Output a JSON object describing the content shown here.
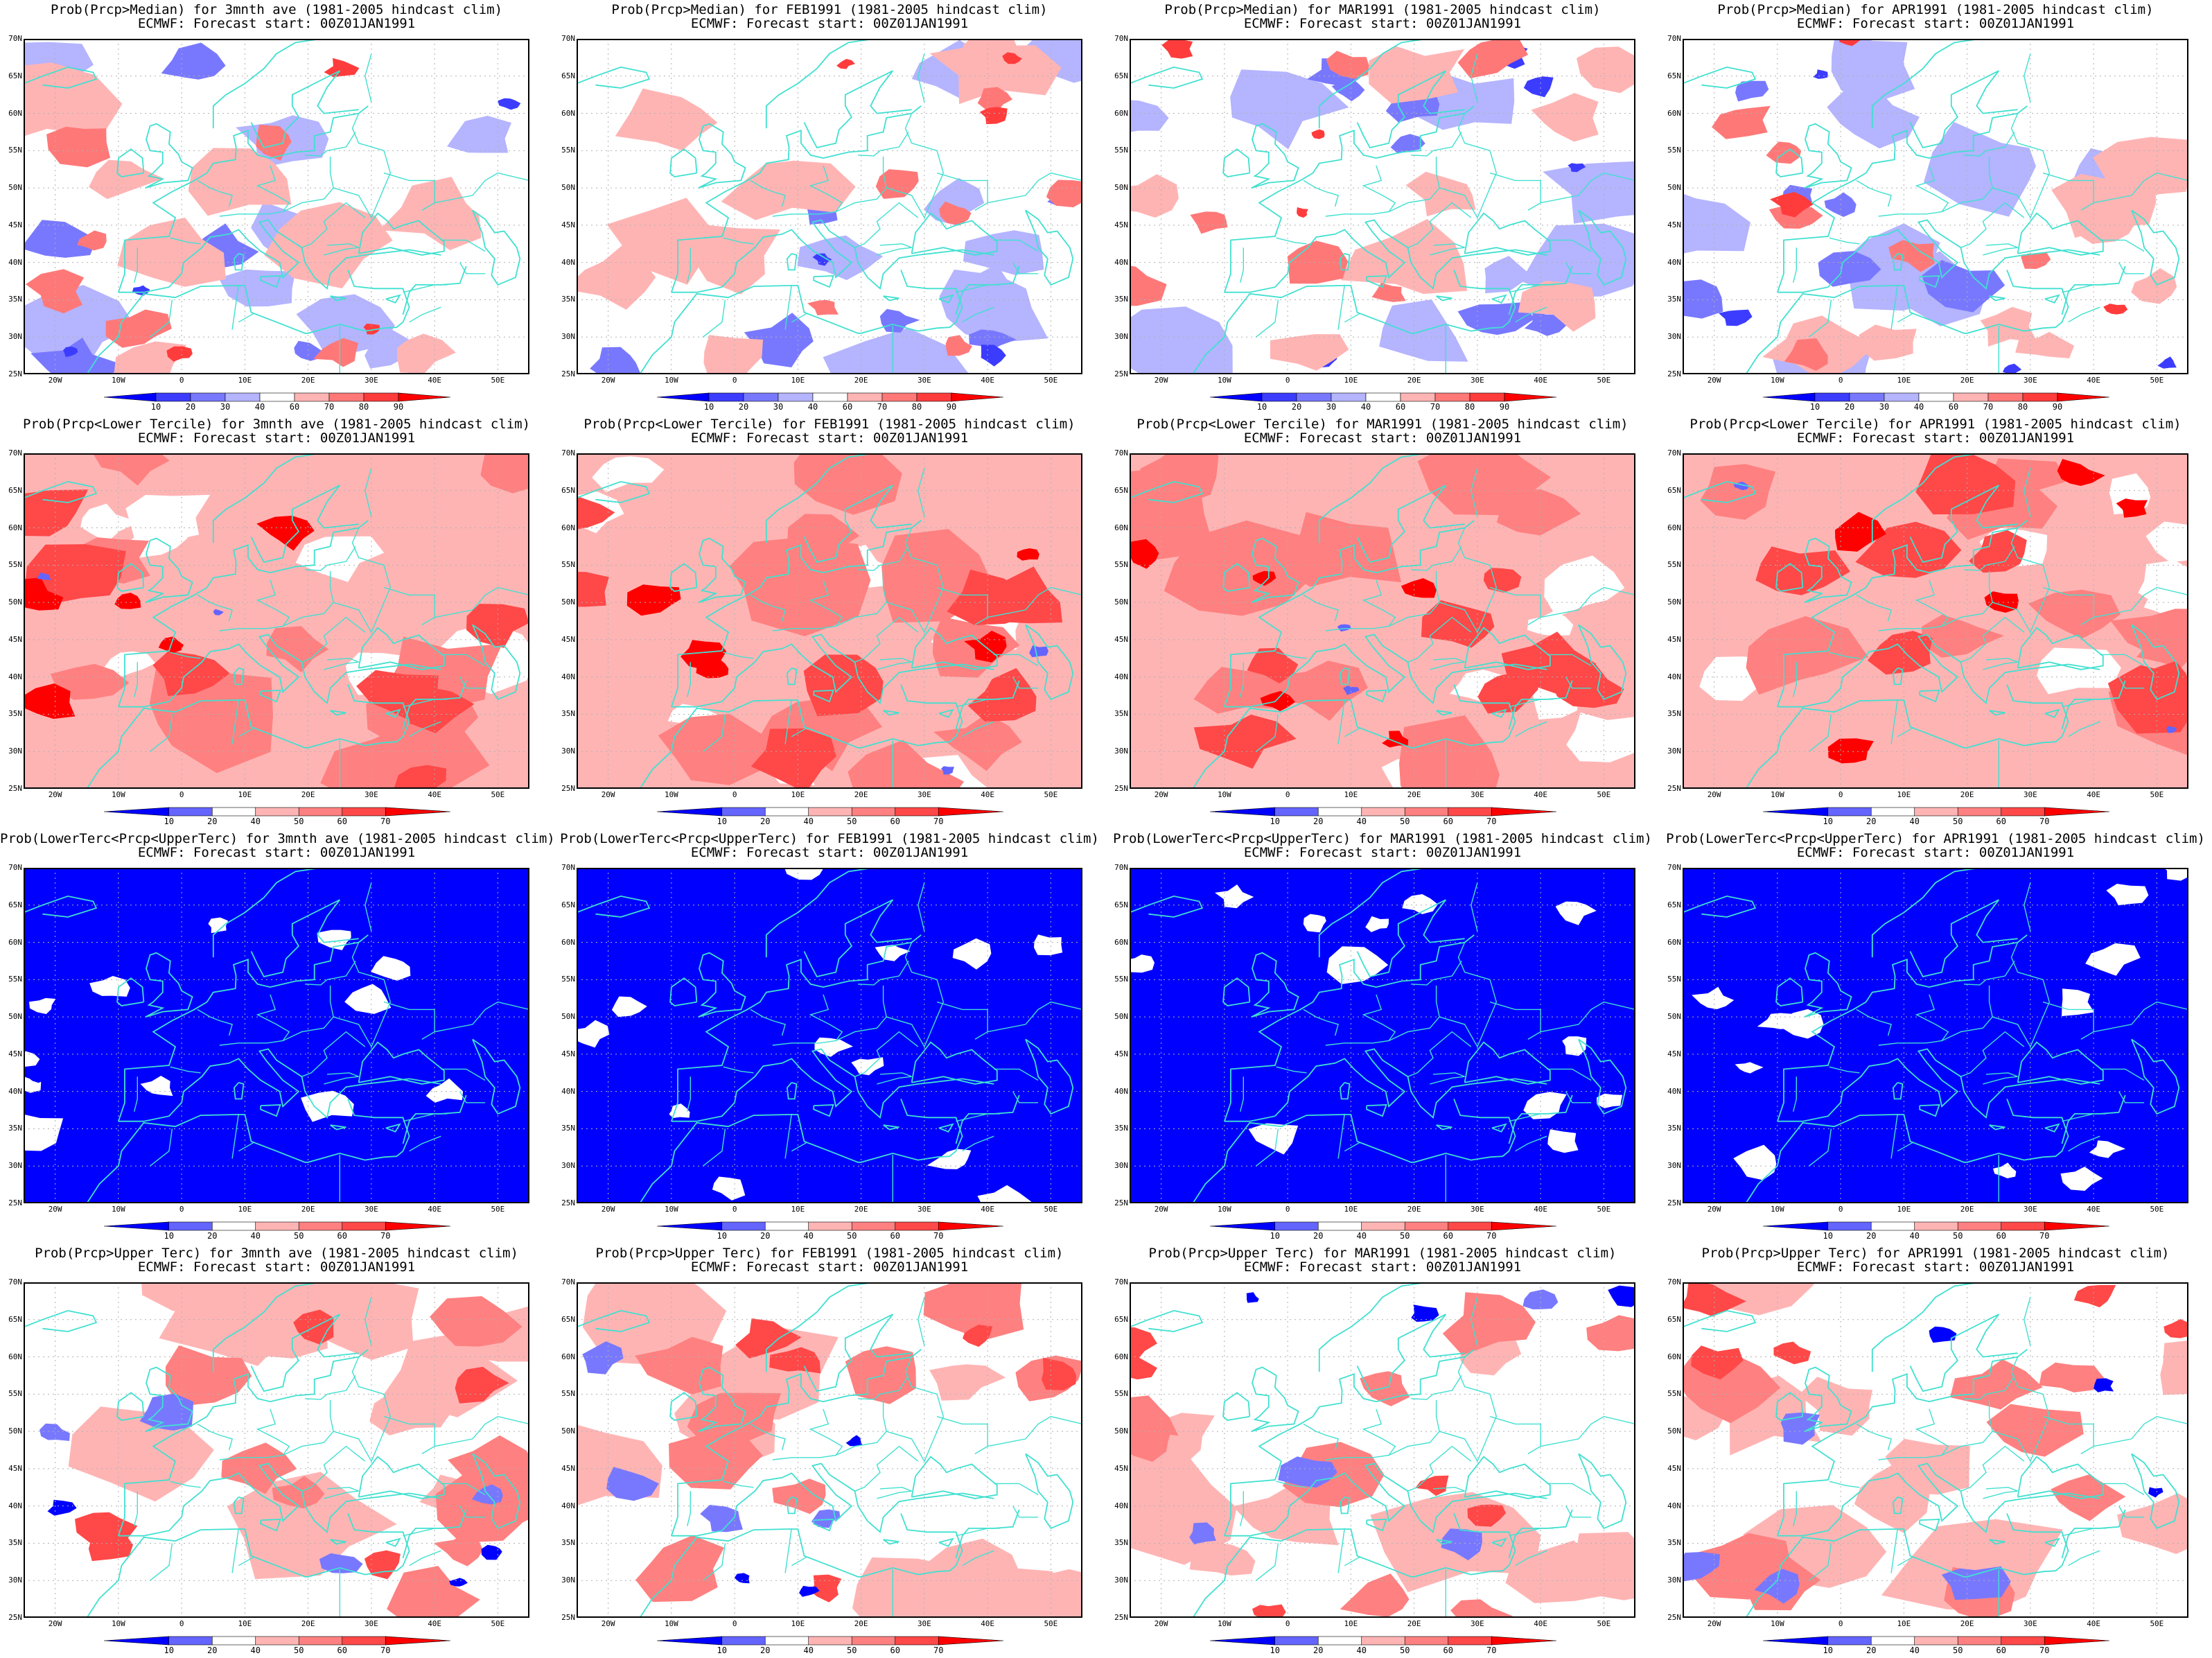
{
  "panels": [
    {
      "row": 0,
      "col": 0,
      "title": "Prob(Prcp>Median) for 3mnth ave (1981-2005 hindcast clim)",
      "subtitle": "ECMWF: Forecast start: 00Z01JAN1991",
      "theme": "median",
      "seed": 11
    },
    {
      "row": 0,
      "col": 1,
      "title": "Prob(Prcp>Median) for FEB1991 (1981-2005 hindcast clim)",
      "subtitle": "ECMWF: Forecast start: 00Z01JAN1991",
      "theme": "median",
      "seed": 12
    },
    {
      "row": 0,
      "col": 2,
      "title": "Prob(Prcp>Median) for MAR1991 (1981-2005 hindcast clim)",
      "subtitle": "ECMWF: Forecast start: 00Z01JAN1991",
      "theme": "median",
      "seed": 13
    },
    {
      "row": 0,
      "col": 3,
      "title": "Prob(Prcp>Median) for APR1991 (1981-2005 hindcast clim)",
      "subtitle": "ECMWF: Forecast start: 00Z01JAN1991",
      "theme": "median",
      "seed": 14
    },
    {
      "row": 1,
      "col": 0,
      "title": "Prob(Prcp<Lower Tercile) for 3mnth ave (1981-2005 hindcast clim)",
      "subtitle": "ECMWF: Forecast start: 00Z01JAN1991",
      "theme": "lower",
      "seed": 21
    },
    {
      "row": 1,
      "col": 1,
      "title": "Prob(Prcp<Lower Tercile) for FEB1991 (1981-2005 hindcast clim)",
      "subtitle": "ECMWF: Forecast start: 00Z01JAN1991",
      "theme": "lower",
      "seed": 22
    },
    {
      "row": 1,
      "col": 2,
      "title": "Prob(Prcp<Lower Tercile) for MAR1991 (1981-2005 hindcast clim)",
      "subtitle": "ECMWF: Forecast start: 00Z01JAN1991",
      "theme": "lower",
      "seed": 23
    },
    {
      "row": 1,
      "col": 3,
      "title": "Prob(Prcp<Lower Tercile) for APR1991 (1981-2005 hindcast clim)",
      "subtitle": "ECMWF: Forecast start: 00Z01JAN1991",
      "theme": "lower",
      "seed": 24
    },
    {
      "row": 2,
      "col": 0,
      "title": "Prob(LowerTerc<Prcp<UpperTerc) for 3mnth ave (1981-2005 hindcast clim)",
      "subtitle": "ECMWF: Forecast start: 00Z01JAN1991",
      "theme": "middle",
      "seed": 31
    },
    {
      "row": 2,
      "col": 1,
      "title": "Prob(LowerTerc<Prcp<UpperTerc) for FEB1991 (1981-2005 hindcast clim)",
      "subtitle": "ECMWF: Forecast start: 00Z01JAN1991",
      "theme": "middle",
      "seed": 32
    },
    {
      "row": 2,
      "col": 2,
      "title": "Prob(LowerTerc<Prcp<UpperTerc) for MAR1991 (1981-2005 hindcast clim)",
      "subtitle": "ECMWF: Forecast start: 00Z01JAN1991",
      "theme": "middle",
      "seed": 33
    },
    {
      "row": 2,
      "col": 3,
      "title": "Prob(LowerTerc<Prcp<UpperTerc) for APR1991 (1981-2005 hindcast clim)",
      "subtitle": "ECMWF: Forecast start: 00Z01JAN1991",
      "theme": "middle",
      "seed": 34
    },
    {
      "row": 3,
      "col": 0,
      "title": "Prob(Prcp>Upper Terc) for 3mnth ave (1981-2005 hindcast clim)",
      "subtitle": "ECMWF: Forecast start: 00Z01JAN1991",
      "theme": "upper",
      "seed": 41
    },
    {
      "row": 3,
      "col": 1,
      "title": "Prob(Prcp>Upper Terc) for FEB1991 (1981-2005 hindcast clim)",
      "subtitle": "ECMWF: Forecast start: 00Z01JAN1991",
      "theme": "upper",
      "seed": 42
    },
    {
      "row": 3,
      "col": 2,
      "title": "Prob(Prcp>Upper Terc) for MAR1991 (1981-2005 hindcast clim)",
      "subtitle": "ECMWF: Forecast start: 00Z01JAN1991",
      "theme": "upper",
      "seed": 43
    },
    {
      "row": 3,
      "col": 3,
      "title": "Prob(Prcp>Upper Terc) for APR1991 (1981-2005 hindcast clim)",
      "subtitle": "ECMWF: Forecast start: 00Z01JAN1991",
      "theme": "upper",
      "seed": 44
    }
  ],
  "lat_labels": [
    "70N",
    "65N",
    "60N",
    "55N",
    "50N",
    "45N",
    "40N",
    "35N",
    "30N",
    "25N"
  ],
  "lon_labels": [
    "20W",
    "10W",
    "0",
    "10E",
    "20E",
    "30E",
    "40E",
    "50E"
  ],
  "colorbars": {
    "median": {
      "labels": [
        "10",
        "20",
        "30",
        "40",
        "60",
        "70",
        "80",
        "90"
      ],
      "colors": [
        "#0000ff",
        "#3c3cff",
        "#7878ff",
        "#b4b4ff",
        "#ffffff",
        "#ffb4b4",
        "#ff7878",
        "#ff3c3c",
        "#ff0000"
      ]
    },
    "tercile": {
      "labels": [
        "10",
        "20",
        "40",
        "50",
        "60",
        "70"
      ],
      "colors": [
        "#0000ff",
        "#6464ff",
        "#ffffff",
        "#ffb4b4",
        "#ff8080",
        "#ff4848",
        "#ff0000"
      ]
    }
  },
  "colors": {
    "coastline": "#40e0d0",
    "gridline": "#b0b0b0",
    "frame": "#000000"
  }
}
